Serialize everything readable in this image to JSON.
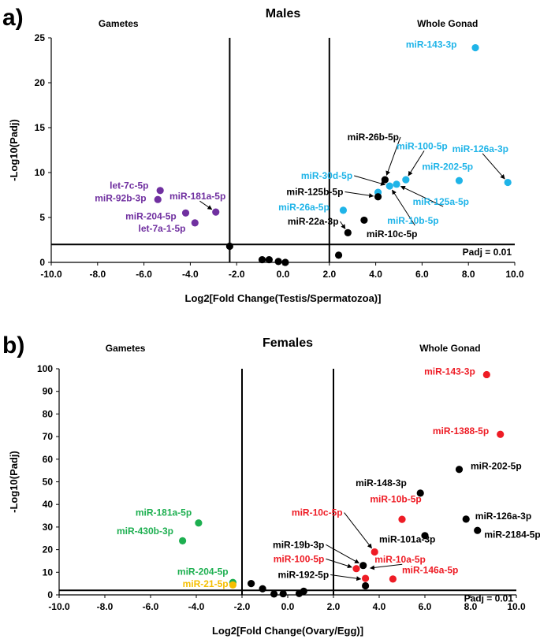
{
  "chart_data": [
    {
      "type": "scatter",
      "panel_label": "a)",
      "title": "Males",
      "xlabel": "Log2[Fold Change(Testis/Spermatozoa)]",
      "ylabel": "-Log10(Padj)",
      "xlim": [
        -10,
        10
      ],
      "ylim": [
        0,
        25
      ],
      "xticks": [
        "-10.0",
        "-8.0",
        "-6.0",
        "-4.0",
        "-2.0",
        "0.0",
        "2.0",
        "4.0",
        "6.0",
        "8.0",
        "10.0"
      ],
      "yticks": [
        "0",
        "5",
        "10",
        "15",
        "20",
        "25"
      ],
      "region_labels": {
        "left": "Gametes",
        "right": "Whole Gonad"
      },
      "threshold": {
        "y": 2,
        "label": "Padj = 0.01"
      },
      "vlines": [
        -2.3,
        2.0
      ],
      "colors": {
        "purple": "#7030a0",
        "blue": "#1fb4e8",
        "black": "#000000"
      },
      "points": [
        {
          "x": 8.3,
          "y": 23.9,
          "color": "blue"
        },
        {
          "x": 9.7,
          "y": 8.9,
          "color": "blue"
        },
        {
          "x": 7.6,
          "y": 9.1,
          "color": "blue"
        },
        {
          "x": 5.3,
          "y": 9.2,
          "color": "blue"
        },
        {
          "x": 4.9,
          "y": 8.7,
          "color": "blue"
        },
        {
          "x": 4.6,
          "y": 8.5,
          "color": "blue"
        },
        {
          "x": 4.1,
          "y": 7.8,
          "color": "blue"
        },
        {
          "x": 2.6,
          "y": 5.8,
          "color": "blue"
        },
        {
          "x": 4.4,
          "y": 9.2,
          "color": "black"
        },
        {
          "x": 4.1,
          "y": 7.3,
          "color": "black"
        },
        {
          "x": 3.5,
          "y": 4.7,
          "color": "black"
        },
        {
          "x": 2.8,
          "y": 3.3,
          "color": "black"
        },
        {
          "x": 2.4,
          "y": 0.8,
          "color": "black"
        },
        {
          "x": -2.3,
          "y": 1.8,
          "color": "black"
        },
        {
          "x": -0.9,
          "y": 0.3,
          "color": "black"
        },
        {
          "x": -0.6,
          "y": 0.3,
          "color": "black"
        },
        {
          "x": -0.2,
          "y": 0.1,
          "color": "black"
        },
        {
          "x": 0.1,
          "y": 0.0,
          "color": "black"
        },
        {
          "x": -5.3,
          "y": 8.0,
          "color": "purple"
        },
        {
          "x": -5.4,
          "y": 7.0,
          "color": "purple"
        },
        {
          "x": -2.9,
          "y": 5.6,
          "color": "purple"
        },
        {
          "x": -4.2,
          "y": 5.5,
          "color": "purple"
        },
        {
          "x": -3.8,
          "y": 4.4,
          "color": "purple"
        }
      ],
      "labels": [
        {
          "text": "miR-143-3p",
          "x": 5.3,
          "y": 23.9,
          "color": "blue",
          "anchor": "start"
        },
        {
          "text": "miR-126a-3p",
          "x": 7.3,
          "y": 12.3,
          "color": "blue",
          "anchor": "start",
          "arrow_to": [
            9.7,
            8.9
          ]
        },
        {
          "text": "miR-202-5p",
          "x": 6.0,
          "y": 10.3,
          "color": "blue",
          "anchor": "start"
        },
        {
          "text": "miR-100-5p",
          "x": 4.9,
          "y": 12.6,
          "color": "blue",
          "anchor": "start",
          "arrow_to": [
            5.3,
            9.2
          ]
        },
        {
          "text": "miR-26b-5p",
          "x": 5.0,
          "y": 13.6,
          "color": "black",
          "anchor": "end",
          "arrow_to": [
            4.4,
            9.2
          ]
        },
        {
          "text": "miR-30d-5p",
          "x": 3.0,
          "y": 9.3,
          "color": "blue",
          "anchor": "end",
          "arrow_to": [
            4.6,
            8.5
          ]
        },
        {
          "text": "miR-125b-5p",
          "x": 2.6,
          "y": 7.5,
          "color": "black",
          "anchor": "end",
          "arrow_to": [
            4.1,
            7.3
          ]
        },
        {
          "text": "miR-125a-5p",
          "x": 5.6,
          "y": 6.4,
          "color": "blue",
          "anchor": "start",
          "arrow_to": [
            4.9,
            8.7
          ]
        },
        {
          "text": "miR-26a-5p",
          "x": 2.0,
          "y": 5.8,
          "color": "blue",
          "anchor": "end"
        },
        {
          "text": "miR-10b-5p",
          "x": 4.5,
          "y": 4.3,
          "color": "blue",
          "anchor": "start",
          "arrow_to": [
            4.6,
            8.5
          ]
        },
        {
          "text": "miR-22a-3p",
          "x": 2.4,
          "y": 4.2,
          "color": "black",
          "anchor": "end",
          "arrow_to": [
            2.8,
            3.3
          ]
        },
        {
          "text": "miR-10c-5p",
          "x": 3.6,
          "y": 2.8,
          "color": "black",
          "anchor": "start"
        },
        {
          "text": "let-7c-5p",
          "x": -5.8,
          "y": 8.2,
          "color": "purple",
          "anchor": "end"
        },
        {
          "text": "miR-92b-3p",
          "x": -5.9,
          "y": 6.8,
          "color": "purple",
          "anchor": "end"
        },
        {
          "text": "miR-181a-5p",
          "x": -4.9,
          "y": 7.0,
          "color": "purple",
          "anchor": "start",
          "arrow_to": [
            -2.9,
            5.6
          ]
        },
        {
          "text": "miR-204-5p",
          "x": -4.6,
          "y": 4.8,
          "color": "purple",
          "anchor": "end"
        },
        {
          "text": "let-7a-1-5p",
          "x": -4.2,
          "y": 3.4,
          "color": "purple",
          "anchor": "end"
        }
      ]
    },
    {
      "type": "scatter",
      "panel_label": "b)",
      "title": "Females",
      "xlabel": "Log2[Fold Change(Ovary/Egg)]",
      "ylabel": "-Log10(Padj)",
      "xlim": [
        -10,
        10
      ],
      "ylim": [
        0,
        100
      ],
      "xticks": [
        "-10.0",
        "-8.0",
        "-6.0",
        "-4.0",
        "-2.0",
        "0.0",
        "2.0",
        "4.0",
        "6.0",
        "8.0",
        "10.0"
      ],
      "yticks": [
        "0",
        "10",
        "20",
        "30",
        "40",
        "50",
        "60",
        "70",
        "80",
        "90",
        "100"
      ],
      "region_labels": {
        "left": "Gametes",
        "right": "Whole Gonad"
      },
      "threshold": {
        "y": 2,
        "label": "Padj = 0.01"
      },
      "vlines": [
        -2.0,
        2.0
      ],
      "colors": {
        "red": "#ee1c25",
        "green": "#1daf50",
        "yellow": "#f5be00",
        "black": "#000000"
      },
      "points": [
        {
          "x": 8.7,
          "y": 97.4,
          "color": "red"
        },
        {
          "x": 9.3,
          "y": 71.0,
          "color": "red"
        },
        {
          "x": 5.0,
          "y": 33.4,
          "color": "red"
        },
        {
          "x": 3.8,
          "y": 19.0,
          "color": "red"
        },
        {
          "x": 3.0,
          "y": 11.6,
          "color": "red"
        },
        {
          "x": 3.4,
          "y": 7.3,
          "color": "red"
        },
        {
          "x": 4.6,
          "y": 7.0,
          "color": "red"
        },
        {
          "x": 7.5,
          "y": 55.5,
          "color": "black"
        },
        {
          "x": 5.8,
          "y": 45.0,
          "color": "black"
        },
        {
          "x": 7.8,
          "y": 33.5,
          "color": "black"
        },
        {
          "x": 8.3,
          "y": 28.5,
          "color": "black"
        },
        {
          "x": 6.0,
          "y": 26.2,
          "color": "black"
        },
        {
          "x": 3.3,
          "y": 13.0,
          "color": "black"
        },
        {
          "x": 3.4,
          "y": 4.0,
          "color": "black"
        },
        {
          "x": -1.6,
          "y": 5.0,
          "color": "black"
        },
        {
          "x": -1.1,
          "y": 2.7,
          "color": "black"
        },
        {
          "x": -0.6,
          "y": 0.4,
          "color": "black"
        },
        {
          "x": -0.2,
          "y": 0.5,
          "color": "black"
        },
        {
          "x": 0.5,
          "y": 0.6,
          "color": "black"
        },
        {
          "x": 0.7,
          "y": 1.6,
          "color": "black"
        },
        {
          "x": -3.9,
          "y": 31.8,
          "color": "green"
        },
        {
          "x": -4.6,
          "y": 23.9,
          "color": "green"
        },
        {
          "x": -2.4,
          "y": 5.5,
          "color": "green"
        },
        {
          "x": -2.4,
          "y": 4.4,
          "color": "yellow"
        }
      ],
      "labels": [
        {
          "text": "miR-143-3p",
          "x": 8.2,
          "y": 97.4,
          "color": "red",
          "anchor": "end"
        },
        {
          "text": "miR-1388-5p",
          "x": 8.8,
          "y": 71.0,
          "color": "red",
          "anchor": "end"
        },
        {
          "text": "miR-202-5p",
          "x": 8.0,
          "y": 55.5,
          "color": "black",
          "anchor": "start"
        },
        {
          "text": "miR-148-3p",
          "x": 5.2,
          "y": 48.0,
          "color": "black",
          "anchor": "end"
        },
        {
          "text": "miR-10b-5p",
          "x": 3.6,
          "y": 41.0,
          "color": "red",
          "anchor": "start"
        },
        {
          "text": "miR-126a-3p",
          "x": 8.2,
          "y": 33.5,
          "color": "black",
          "anchor": "start"
        },
        {
          "text": "miR-10c-5p",
          "x": 2.4,
          "y": 35.0,
          "color": "red",
          "anchor": "end",
          "arrow_to": [
            3.8,
            19.0
          ]
        },
        {
          "text": "miR-101a-3p",
          "x": 4.0,
          "y": 23.2,
          "color": "black",
          "anchor": "start"
        },
        {
          "text": "miR-2184-5p",
          "x": 8.6,
          "y": 25.2,
          "color": "black",
          "anchor": "start"
        },
        {
          "text": "miR-19b-3p",
          "x": 1.6,
          "y": 20.8,
          "color": "black",
          "anchor": "end",
          "arrow_to": [
            3.3,
            13.0
          ]
        },
        {
          "text": "miR-10a-5p",
          "x": 3.8,
          "y": 14.2,
          "color": "red",
          "anchor": "start",
          "arrow_to": [
            3.4,
            11.6
          ]
        },
        {
          "text": "miR-100-5p",
          "x": 1.6,
          "y": 14.5,
          "color": "red",
          "anchor": "end",
          "arrow_to": [
            3.0,
            11.6
          ]
        },
        {
          "text": "miR-146a-5p",
          "x": 5.0,
          "y": 9.5,
          "color": "red",
          "anchor": "start"
        },
        {
          "text": "miR-192-5p",
          "x": 1.8,
          "y": 7.5,
          "color": "black",
          "anchor": "end",
          "arrow_to": [
            3.4,
            6.7
          ]
        },
        {
          "text": "miR-181a-5p",
          "x": -4.2,
          "y": 35.0,
          "color": "green",
          "anchor": "end"
        },
        {
          "text": "miR-430b-3p",
          "x": -5.0,
          "y": 26.8,
          "color": "green",
          "anchor": "end"
        },
        {
          "text": "miR-204-5p",
          "x": -2.6,
          "y": 8.8,
          "color": "green",
          "anchor": "end"
        },
        {
          "text": "miR-21-5p",
          "x": -2.6,
          "y": 3.5,
          "color": "yellow",
          "anchor": "end"
        }
      ]
    }
  ]
}
